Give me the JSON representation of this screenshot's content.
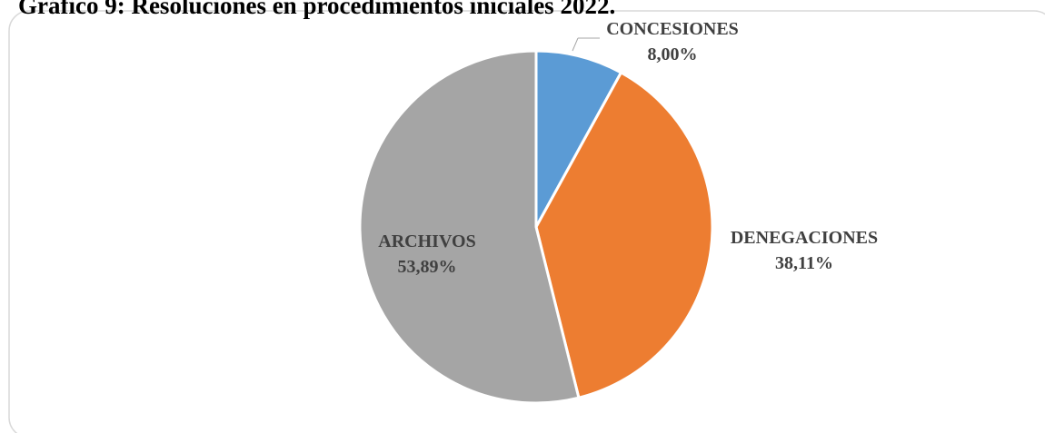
{
  "chart_data": {
    "type": "pie",
    "title": "Gráfico 9: Resoluciones en procedimientos iniciales 2022.",
    "categories": [
      "CONCESIONES",
      "DENEGACIONES",
      "ARCHIVOS"
    ],
    "values": [
      8.0,
      38.11,
      53.89
    ],
    "value_labels": [
      "8,00%",
      "38,11%",
      "53,89%"
    ],
    "colors": [
      "#5b9bd5",
      "#ed7d31",
      "#a5a5a5"
    ]
  }
}
